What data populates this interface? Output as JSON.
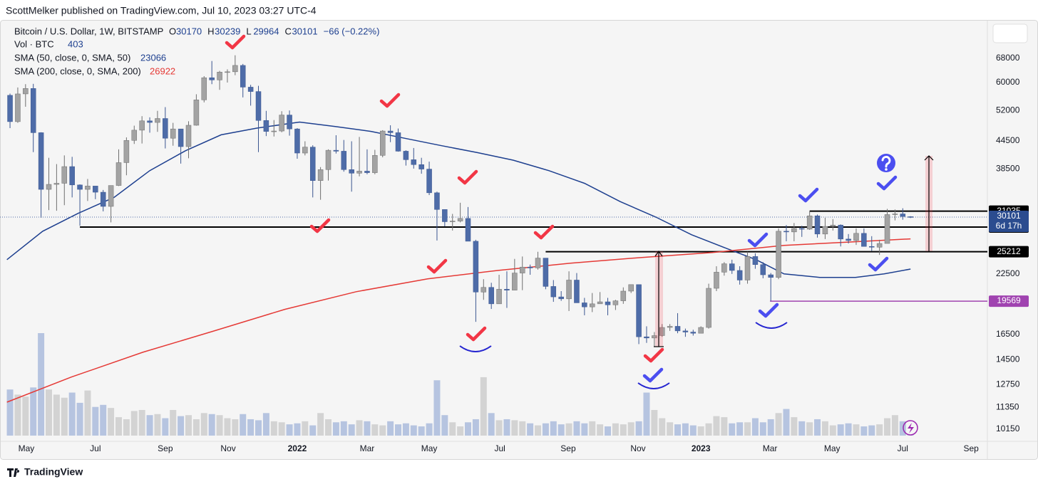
{
  "header": "ScottMelker published on TradingView.com, Jul 10, 2023 03:27 UTC-4",
  "footer": "TradingView",
  "chart_data": {
    "type": "candlestick",
    "legend": {
      "symbol": "Bitcoin / U.S. Dollar, 1W, BITSTAMP",
      "ohlc_letters": [
        "O",
        "H",
        "L",
        "C"
      ],
      "change": "−66 (−0.22%)",
      "volume_name": "Vol · BTC",
      "countdown": "6d 17h"
    },
    "log_scale": true,
    "grid": false,
    "up_color": "#a3a3a3",
    "down_color": "#4e6ca8",
    "volume_up_color": "#d3d3d3",
    "volume_down_color": "#b6c4e0",
    "ylim": [
      9540,
      82700
    ],
    "yticks": [
      68000,
      60000,
      52000,
      44500,
      38500,
      22500,
      16500,
      14500,
      12750,
      11350,
      10150
    ],
    "xlim": [
      -1.29,
      125.9
    ],
    "xticks": [
      {
        "value": 2.1,
        "label": "May"
      },
      {
        "value": 11.0,
        "label": "Jul"
      },
      {
        "value": 20.0,
        "label": "Sep"
      },
      {
        "value": 28.1,
        "label": "Nov"
      },
      {
        "value": 37.0,
        "label": "2022"
      },
      {
        "value": 46.0,
        "label": "Mar"
      },
      {
        "value": 54.0,
        "label": "May"
      },
      {
        "value": 63.1,
        "label": "Jul"
      },
      {
        "value": 71.9,
        "label": "Sep"
      },
      {
        "value": 80.9,
        "label": "Nov"
      },
      {
        "value": 89.0,
        "label": "2023"
      },
      {
        "value": 97.9,
        "label": "Mar"
      },
      {
        "value": 105.9,
        "label": "May"
      },
      {
        "value": 115.0,
        "label": "Jul"
      },
      {
        "value": 123.8,
        "label": "Sep"
      }
    ],
    "candles": [
      [
        56200,
        56700,
        47500,
        49100
      ],
      [
        49100,
        58500,
        48800,
        56600
      ],
      [
        56600,
        59500,
        53000,
        58200
      ],
      [
        58200,
        59600,
        42000,
        46400
      ],
      [
        46400,
        46500,
        30000,
        34700
      ],
      [
        34700,
        40800,
        31200,
        35600
      ],
      [
        35600,
        39500,
        31100,
        35800
      ],
      [
        35800,
        41300,
        32000,
        39000
      ],
      [
        39000,
        41000,
        33300,
        35500
      ],
      [
        35500,
        35600,
        28800,
        34700
      ],
      [
        34700,
        36600,
        32700,
        35300
      ],
      [
        35300,
        35100,
        33000,
        34200
      ],
      [
        34200,
        34600,
        31000,
        31800
      ],
      [
        31800,
        35400,
        29300,
        35400
      ],
      [
        35400,
        42600,
        35300,
        39800
      ],
      [
        39800,
        45300,
        37300,
        44600
      ],
      [
        44600,
        48100,
        43800,
        47000
      ],
      [
        47000,
        50500,
        43900,
        49300
      ],
      [
        49300,
        50200,
        46400,
        48900
      ],
      [
        48900,
        51900,
        46600,
        49900
      ],
      [
        49900,
        52900,
        42800,
        45100
      ],
      [
        45100,
        48800,
        43400,
        47300
      ],
      [
        47300,
        47300,
        39600,
        43200
      ],
      [
        43200,
        49200,
        40700,
        48200
      ],
      [
        48200,
        56500,
        48100,
        54900
      ],
      [
        54900,
        62000,
        54200,
        61500
      ],
      [
        61500,
        67000,
        59500,
        60800
      ],
      [
        60800,
        63700,
        57800,
        63300
      ],
      [
        63300,
        64200,
        60000,
        63400
      ],
      [
        63400,
        69000,
        62300,
        65500
      ],
      [
        65500,
        66000,
        55600,
        58600
      ],
      [
        58600,
        59300,
        53300,
        57300
      ],
      [
        57300,
        59000,
        42000,
        49400
      ],
      [
        49400,
        51900,
        45600,
        46700
      ],
      [
        46700,
        49500,
        45500,
        46800
      ],
      [
        46800,
        51800,
        46500,
        50800
      ],
      [
        50800,
        52000,
        45700,
        47300
      ],
      [
        47300,
        47500,
        40600,
        41800
      ],
      [
        41800,
        44400,
        41300,
        43100
      ],
      [
        43100,
        43500,
        33300,
        36300
      ],
      [
        36300,
        38900,
        32900,
        38400
      ],
      [
        38400,
        42600,
        36300,
        42400
      ],
      [
        42400,
        45800,
        41700,
        42200
      ],
      [
        42200,
        44700,
        38000,
        38400
      ],
      [
        38400,
        44400,
        34300,
        37700
      ],
      [
        37700,
        45400,
        37100,
        38100
      ],
      [
        38100,
        42600,
        37500,
        37800
      ],
      [
        37800,
        42500,
        37500,
        41300
      ],
      [
        41300,
        47000,
        40900,
        46800
      ],
      [
        46800,
        48200,
        44200,
        46400
      ],
      [
        46400,
        47400,
        42100,
        42200
      ],
      [
        42200,
        42400,
        39200,
        40400
      ],
      [
        40400,
        42900,
        38600,
        39400
      ],
      [
        39400,
        40800,
        37600,
        38500
      ],
      [
        38500,
        40000,
        33700,
        34100
      ],
      [
        34100,
        34300,
        26700,
        31300
      ],
      [
        31300,
        31300,
        28700,
        29400
      ],
      [
        29400,
        30600,
        28100,
        29500
      ],
      [
        29500,
        32400,
        29300,
        29900
      ],
      [
        29900,
        31700,
        26600,
        26600
      ],
      [
        26600,
        26800,
        17600,
        20500
      ],
      [
        20500,
        21900,
        19700,
        21000
      ],
      [
        21000,
        21500,
        18800,
        19300
      ],
      [
        19300,
        22400,
        19300,
        20800
      ],
      [
        20800,
        22800,
        18900,
        20700
      ],
      [
        20700,
        24300,
        20700,
        22600
      ],
      [
        22600,
        24600,
        20700,
        23300
      ],
      [
        23300,
        23600,
        22400,
        23200
      ],
      [
        23200,
        25200,
        23000,
        24400
      ],
      [
        24400,
        24400,
        20800,
        21100
      ],
      [
        21100,
        21800,
        19500,
        20000
      ],
      [
        20000,
        20600,
        19600,
        19800
      ],
      [
        19800,
        22800,
        18600,
        21800
      ],
      [
        21800,
        22600,
        19400,
        19400
      ],
      [
        19400,
        19900,
        18200,
        19000
      ],
      [
        19000,
        20400,
        18500,
        19300
      ],
      [
        19300,
        20500,
        19300,
        19500
      ],
      [
        19500,
        19900,
        18200,
        19200
      ],
      [
        19200,
        19700,
        18700,
        19600
      ],
      [
        19600,
        21000,
        19300,
        20600
      ],
      [
        20600,
        21300,
        20400,
        21300
      ],
      [
        21300,
        21300,
        15700,
        16300
      ],
      [
        16300,
        17200,
        15800,
        16200
      ],
      [
        16200,
        16700,
        15500,
        16400
      ],
      [
        16400,
        17400,
        16300,
        17100
      ],
      [
        17100,
        17400,
        16800,
        17200
      ],
      [
        17200,
        18400,
        16600,
        16800
      ],
      [
        16800,
        17000,
        16300,
        16700
      ],
      [
        16700,
        16900,
        16400,
        16600
      ],
      [
        16600,
        17200,
        16600,
        17100
      ],
      [
        17100,
        21400,
        17000,
        20900
      ],
      [
        20900,
        23400,
        20600,
        22700
      ],
      [
        22700,
        23900,
        22300,
        23700
      ],
      [
        23700,
        24200,
        22500,
        22900
      ],
      [
        22900,
        23400,
        21300,
        21800
      ],
      [
        21800,
        25200,
        21400,
        24600
      ],
      [
        24600,
        25000,
        23100,
        23600
      ],
      [
        23600,
        23900,
        22000,
        22400
      ],
      [
        22400,
        22600,
        19569,
        22100
      ],
      [
        22100,
        28400,
        21900,
        28000
      ],
      [
        28000,
        28900,
        26600,
        27900
      ],
      [
        27900,
        29200,
        26600,
        28400
      ],
      [
        28400,
        28800,
        27200,
        28300
      ],
      [
        28300,
        31000,
        28200,
        30300
      ],
      [
        30300,
        30500,
        27100,
        27600
      ],
      [
        27600,
        30000,
        26900,
        28700
      ],
      [
        28700,
        29800,
        28100,
        28900
      ],
      [
        28900,
        29000,
        25900,
        26900
      ],
      [
        26900,
        27600,
        26300,
        26700
      ],
      [
        26700,
        28400,
        26100,
        27700
      ],
      [
        27700,
        28400,
        25900,
        25900
      ],
      [
        25900,
        27300,
        25300,
        25800
      ],
      [
        25800,
        26800,
        24800,
        26300
      ],
      [
        26300,
        31400,
        26300,
        30500
      ],
      [
        30500,
        31300,
        29600,
        30600
      ],
      [
        30600,
        31500,
        29700,
        30200
      ],
      [
        30170,
        30239,
        29964,
        30101
      ]
    ],
    "volumes": [
      45000,
      40000,
      38000,
      47000,
      100000,
      45000,
      40000,
      37000,
      42000,
      32000,
      44000,
      28000,
      30000,
      27000,
      18000,
      16000,
      24000,
      25000,
      20000,
      21000,
      17000,
      25000,
      19000,
      20000,
      16000,
      22000,
      21000,
      20000,
      17000,
      16000,
      21000,
      16000,
      15000,
      22000,
      14000,
      13000,
      11000,
      12000,
      14000,
      10000,
      22000,
      16000,
      13000,
      14000,
      11000,
      15000,
      14000,
      11000,
      10000,
      14000,
      11000,
      12000,
      10000,
      9000,
      12000,
      54000,
      20000,
      13000,
      9000,
      13000,
      16000,
      57000,
      22000,
      15000,
      16000,
      15000,
      14000,
      12000,
      10000,
      12000,
      14000,
      11000,
      12000,
      14000,
      12000,
      14000,
      11000,
      9000,
      12000,
      11000,
      13000,
      14000,
      42000,
      25000,
      17000,
      13000,
      11000,
      12000,
      10000,
      9000,
      12000,
      19000,
      18000,
      12000,
      13000,
      13000,
      17000,
      13000,
      16000,
      22000,
      26000,
      18000,
      14000,
      13000,
      16000,
      14000,
      10000,
      11000,
      12000,
      11000,
      9000,
      10000,
      11000,
      17000,
      20000,
      14000,
      403
    ],
    "sma": [
      {
        "name": "SMA (50, close, 0, SMA, 50)",
        "color": "#1d3f8f",
        "x": [
          -0.4,
          4.2,
          8.8,
          13.4,
          18.0,
          22.6,
          27.2,
          31.8,
          37.3,
          41.9,
          46.5,
          51.1,
          55.6,
          60.2,
          64.8,
          69.4,
          74.0,
          78.6,
          83.2,
          87.8,
          92.4,
          96.1,
          99.7,
          104.3,
          108.9,
          112.6,
          116
        ],
        "values": [
          24200,
          28000,
          30700,
          33300,
          38200,
          42300,
          45900,
          47500,
          49000,
          47900,
          46700,
          45000,
          43400,
          41900,
          40300,
          38200,
          35800,
          32600,
          30100,
          27500,
          25600,
          24200,
          22500,
          22100,
          22100,
          22500,
          23066
        ]
      },
      {
        "name": "SMA (200, close, 0, SMA, 200)",
        "color": "#e53935",
        "x": [
          -0.4,
          7.9,
          17.1,
          26.3,
          35.4,
          44.6,
          53.8,
          63.0,
          72.2,
          81.4,
          90.5,
          99.7,
          108.9,
          116
        ],
        "values": [
          11660,
          13260,
          15060,
          16800,
          18760,
          20540,
          21940,
          22920,
          23770,
          24480,
          25100,
          26050,
          26530,
          26922
        ]
      }
    ],
    "levels": [
      {
        "value": 31035,
        "color": "#000000"
      },
      {
        "value": 28600,
        "color": "#000000"
      },
      {
        "value": 25212,
        "color": "#000000"
      },
      {
        "value": 19569,
        "color": "#a043b0"
      }
    ]
  }
}
